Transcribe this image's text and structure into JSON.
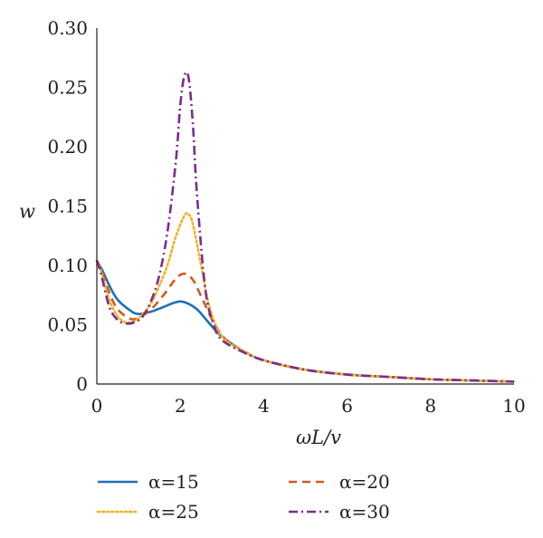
{
  "chart_data": {
    "type": "line",
    "title": "",
    "xlabel": "ωL/v",
    "ylabel": "w",
    "xlim": [
      0,
      10
    ],
    "ylim": [
      0,
      0.3
    ],
    "xticks": [
      "0",
      "2",
      "4",
      "6",
      "8",
      "10"
    ],
    "yticks": [
      "0",
      "0.05",
      "0.10",
      "0.15",
      "0.20",
      "0.25",
      "0.30"
    ],
    "grid": false,
    "legend_position": "bottom",
    "series": [
      {
        "name": "α=15",
        "color": "#1f6fb8",
        "dash": "solid",
        "x": [
          0,
          0.1,
          0.3,
          0.5,
          0.8,
          1.0,
          1.3,
          1.6,
          1.9,
          2.1,
          2.4,
          2.7,
          3.0,
          3.5,
          4.0,
          5.0,
          6.0,
          7.0,
          8.0,
          9.0,
          10.0
        ],
        "y": [
          0.102,
          0.098,
          0.083,
          0.071,
          0.062,
          0.059,
          0.061,
          0.065,
          0.069,
          0.069,
          0.063,
          0.051,
          0.04,
          0.028,
          0.02,
          0.012,
          0.008,
          0.006,
          0.004,
          0.003,
          0.002
        ]
      },
      {
        "name": "α=20",
        "color": "#d2591e",
        "dash": "dashed",
        "x": [
          0,
          0.1,
          0.3,
          0.5,
          0.8,
          1.0,
          1.3,
          1.6,
          1.9,
          2.1,
          2.3,
          2.5,
          2.8,
          3.1,
          3.5,
          4.0,
          5.0,
          6.0,
          7.0,
          8.0,
          9.0,
          10.0
        ],
        "y": [
          0.104,
          0.097,
          0.077,
          0.063,
          0.055,
          0.056,
          0.063,
          0.075,
          0.089,
          0.093,
          0.088,
          0.074,
          0.052,
          0.037,
          0.028,
          0.02,
          0.012,
          0.008,
          0.006,
          0.004,
          0.003,
          0.002
        ]
      },
      {
        "name": "α=25",
        "color": "#f0b323",
        "dash": "dotted",
        "x": [
          0,
          0.1,
          0.3,
          0.5,
          0.7,
          0.9,
          1.1,
          1.3,
          1.5,
          1.7,
          1.9,
          2.1,
          2.2,
          2.3,
          2.5,
          2.7,
          3.0,
          3.5,
          4.0,
          5.0,
          6.0,
          7.0,
          8.0,
          9.0,
          10.0
        ],
        "y": [
          0.104,
          0.095,
          0.071,
          0.057,
          0.052,
          0.053,
          0.059,
          0.068,
          0.083,
          0.101,
          0.125,
          0.142,
          0.143,
          0.135,
          0.1,
          0.065,
          0.04,
          0.028,
          0.02,
          0.012,
          0.008,
          0.006,
          0.004,
          0.003,
          0.002
        ]
      },
      {
        "name": "α=30",
        "color": "#7b2c8f",
        "dash": "dashdot",
        "x": [
          0,
          0.1,
          0.3,
          0.5,
          0.7,
          0.9,
          1.1,
          1.3,
          1.5,
          1.7,
          1.9,
          2.0,
          2.1,
          2.2,
          2.3,
          2.4,
          2.6,
          2.8,
          3.0,
          3.5,
          4.0,
          5.0,
          6.0,
          7.0,
          8.0,
          9.0,
          10.0
        ],
        "y": [
          0.104,
          0.093,
          0.065,
          0.054,
          0.051,
          0.052,
          0.057,
          0.07,
          0.092,
          0.13,
          0.19,
          0.235,
          0.26,
          0.258,
          0.22,
          0.16,
          0.08,
          0.05,
          0.037,
          0.027,
          0.02,
          0.012,
          0.008,
          0.006,
          0.004,
          0.003,
          0.002
        ]
      }
    ]
  }
}
